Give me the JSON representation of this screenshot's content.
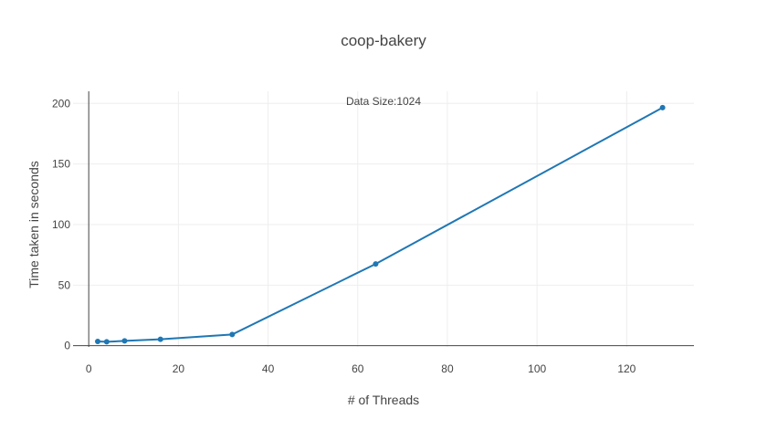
{
  "chart_data": {
    "type": "line",
    "title": "coop-bakery",
    "xlabel": "# of Threads",
    "ylabel": "Time taken in seconds",
    "annotation": "Data Size:1024",
    "xlim": [
      -3.5,
      135
    ],
    "ylim": [
      -1,
      210
    ],
    "xticks": [
      0,
      20,
      40,
      60,
      80,
      100,
      120
    ],
    "yticks": [
      0,
      50,
      100,
      150,
      200
    ],
    "grid": true,
    "line_color": "#1f77b4",
    "series": [
      {
        "x": [
          2,
          4,
          8,
          16,
          32,
          64,
          128
        ],
        "y": [
          3.5,
          3.2,
          4.0,
          5.3,
          9.3,
          67.5,
          196.5
        ]
      }
    ]
  }
}
